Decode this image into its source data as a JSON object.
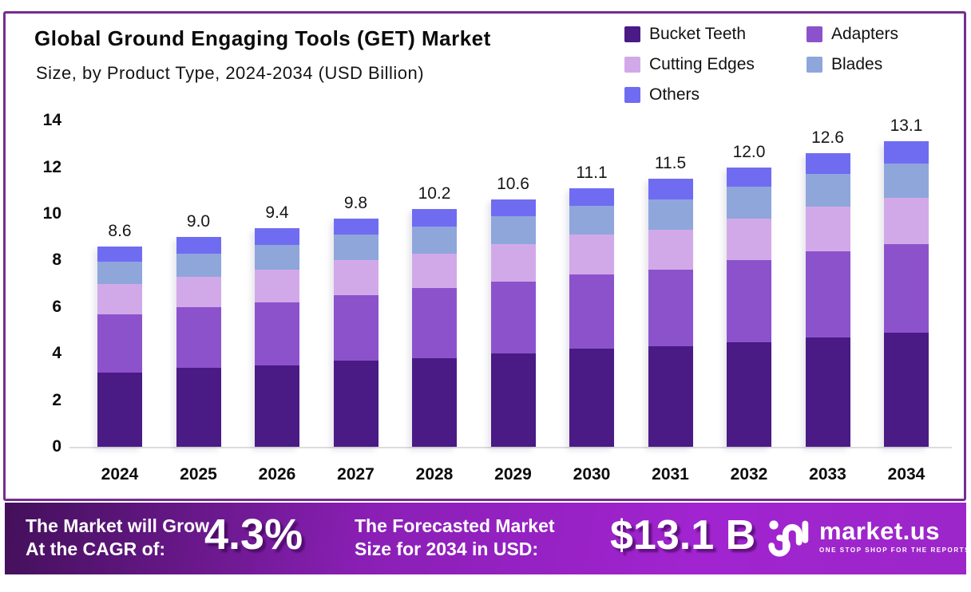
{
  "header": {
    "title": "Global Ground Engaging Tools (GET) Market",
    "subtitle": "Size, by Product Type, 2024-2034 (USD Billion)"
  },
  "legend": {
    "items": [
      {
        "label": "Bucket Teeth",
        "color": "#4A1A85"
      },
      {
        "label": "Adapters",
        "color": "#8C52CC"
      },
      {
        "label": "Cutting Edges",
        "color": "#D2A9E8"
      },
      {
        "label": "Blades",
        "color": "#8FA6DB"
      },
      {
        "label": "Others",
        "color": "#6F6CF2"
      }
    ]
  },
  "chart_data": {
    "type": "bar",
    "stacked": true,
    "title": "Global Ground Engaging Tools (GET) Market Size, by Product Type, 2024-2034 (USD Billion)",
    "xlabel": "",
    "ylabel": "",
    "ylim": [
      0,
      14
    ],
    "yticks": [
      0,
      2,
      4,
      6,
      8,
      10,
      12,
      14
    ],
    "grid": false,
    "legend_position": "top-right",
    "categories": [
      "2024",
      "2025",
      "2026",
      "2027",
      "2028",
      "2029",
      "2030",
      "2031",
      "2032",
      "2033",
      "2034"
    ],
    "series": [
      {
        "name": "Bucket Teeth",
        "color": "#4A1A85",
        "values": [
          3.2,
          3.4,
          3.5,
          3.7,
          3.8,
          4.0,
          4.2,
          4.3,
          4.5,
          4.7,
          4.9
        ]
      },
      {
        "name": "Adapters",
        "color": "#8C52CC",
        "values": [
          2.5,
          2.6,
          2.7,
          2.8,
          3.0,
          3.1,
          3.2,
          3.3,
          3.5,
          3.7,
          3.8
        ]
      },
      {
        "name": "Cutting Edges",
        "color": "#D2A9E8",
        "values": [
          1.3,
          1.3,
          1.4,
          1.5,
          1.5,
          1.6,
          1.7,
          1.7,
          1.8,
          1.9,
          2.0
        ]
      },
      {
        "name": "Blades",
        "color": "#8FA6DB",
        "values": [
          0.95,
          1.0,
          1.05,
          1.1,
          1.15,
          1.2,
          1.25,
          1.3,
          1.35,
          1.4,
          1.45
        ]
      },
      {
        "name": "Others",
        "color": "#6F6CF2",
        "values": [
          0.65,
          0.7,
          0.75,
          0.7,
          0.75,
          0.7,
          0.75,
          0.9,
          0.85,
          0.9,
          0.95
        ]
      }
    ],
    "totals": [
      8.6,
      9.0,
      9.4,
      9.8,
      10.2,
      10.6,
      11.1,
      11.5,
      12.0,
      12.6,
      13.1
    ],
    "total_labels": [
      "8.6",
      "9.0",
      "9.4",
      "9.8",
      "10.2",
      "10.6",
      "11.1",
      "11.5",
      "12.0",
      "12.6",
      "13.1"
    ]
  },
  "footer": {
    "growth_label_line1": "The Market will Grow",
    "growth_label_line2": "At the CAGR of:",
    "cagr_value": "4.3%",
    "forecast_label_line1": "The Forecasted Market",
    "forecast_label_line2": "Size for 2034 in USD:",
    "forecast_value": "$13.1 B",
    "brand_name": "market.us",
    "brand_tagline": "ONE STOP SHOP FOR THE REPORTS"
  },
  "colors": {
    "card_border": "#772D8F",
    "footer_gradient_start": "#43105A",
    "footer_gradient_end": "#A124D0",
    "axis_text": "#0b0b0b",
    "baseline": "#dcdcdc"
  }
}
